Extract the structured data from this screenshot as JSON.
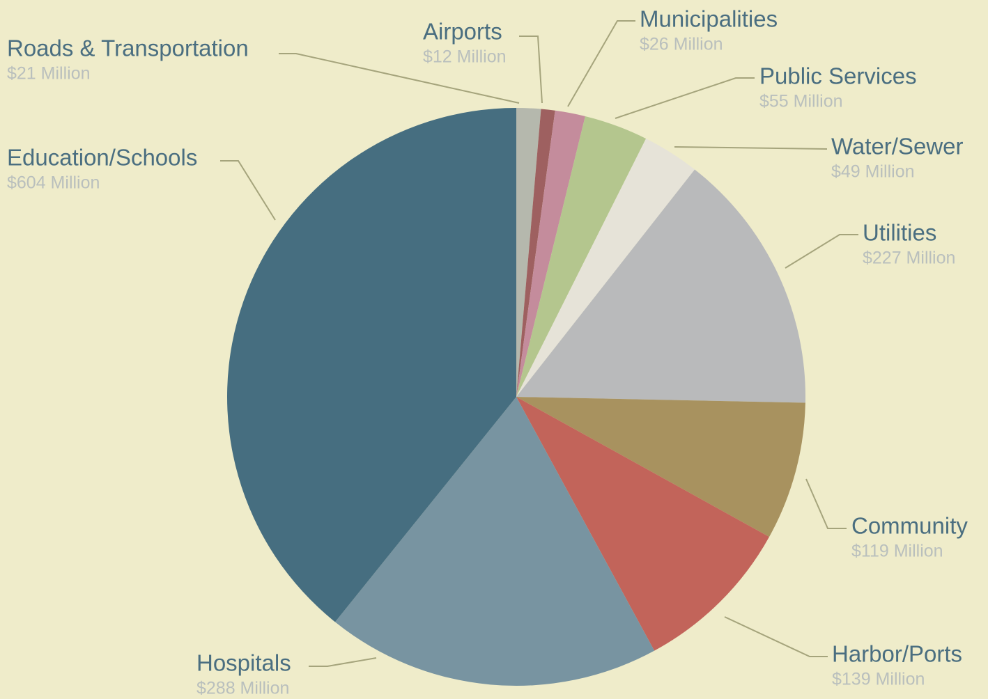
{
  "chart_data": {
    "type": "pie",
    "categories": [
      "Roads & Transportation",
      "Airports",
      "Municipalities",
      "Public Services",
      "Water/Sewer",
      "Utilities",
      "Community",
      "Harbor/Ports",
      "Hospitals",
      "Education/Schools"
    ],
    "values": [
      21,
      12,
      26,
      55,
      49,
      227,
      119,
      139,
      288,
      604
    ],
    "value_labels": [
      "$21 Million",
      "$12 Million",
      "$26 Million",
      "$55 Million",
      "$49 Million",
      "$227 Million",
      "$119 Million",
      "$139 Million",
      "$288 Million",
      "$604 Million"
    ],
    "colors": [
      "#b5b8ad",
      "#9e6060",
      "#c48c9c",
      "#b4c68e",
      "#e6e3d8",
      "#b9babb",
      "#a8925f",
      "#c2645a",
      "#7894a1",
      "#466e80"
    ]
  }
}
